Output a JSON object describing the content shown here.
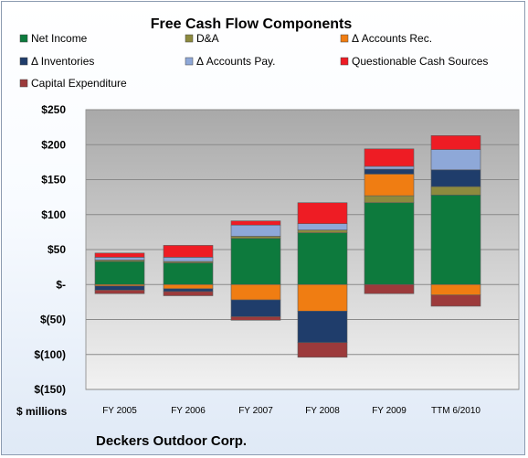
{
  "chart_data": {
    "type": "bar",
    "stacked": true,
    "title": "Free Cash Flow Components",
    "footer": "Deckers Outdoor Corp.",
    "unit_label": "$ millions",
    "categories": [
      "FY 2005",
      "FY 2006",
      "FY 2007",
      "FY 2008",
      "FY 2009",
      "TTM 6/2010"
    ],
    "ylim": [
      -150,
      250
    ],
    "yticks": [
      -150,
      -100,
      -50,
      0,
      50,
      100,
      150,
      200,
      250
    ],
    "ytick_labels": [
      "$(150)",
      "$(100)",
      "$(50)",
      "$-",
      "$50",
      "$100",
      "$150",
      "$200",
      "$250"
    ],
    "grid": true,
    "legend_placement": "top",
    "series": [
      {
        "name": "Net Income",
        "color": "#0d7a3d",
        "values": [
          33,
          31,
          66,
          74,
          117,
          128
        ]
      },
      {
        "name": "D&A",
        "color": "#8d8a3e",
        "values": [
          2,
          2,
          3,
          4,
          10,
          12
        ]
      },
      {
        "name": "Δ Accounts Rec.",
        "color": "#f07d12",
        "values": [
          -2,
          -6,
          -22,
          -38,
          31,
          -15
        ]
      },
      {
        "name": "Δ Inventories",
        "color": "#1f3d6b",
        "values": [
          -6,
          -4,
          -24,
          -45,
          7,
          24
        ]
      },
      {
        "name": "Δ Accounts Pay.",
        "color": "#8ea8d8",
        "values": [
          4,
          6,
          16,
          9,
          4,
          29
        ]
      },
      {
        "name": "Questionable Cash Sources",
        "color": "#ee1c24",
        "values": [
          6,
          17,
          6,
          30,
          25,
          20
        ]
      },
      {
        "name": "Capital Expenditure",
        "color": "#9c3a3b",
        "values": [
          -5,
          -6,
          -5,
          -21,
          -13,
          -16
        ]
      }
    ]
  }
}
